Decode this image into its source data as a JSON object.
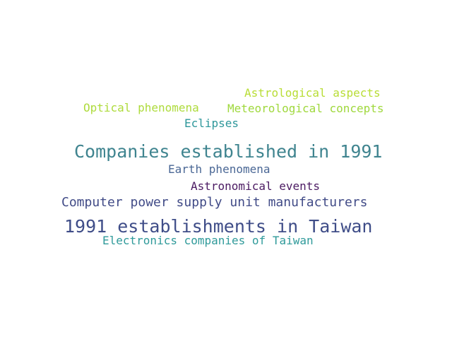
{
  "words": [
    {
      "text": "Companies established in 1991",
      "color": "#3f848f"
    },
    {
      "text": "1991 establishments in Taiwan",
      "color": "#3f4d88"
    },
    {
      "text": "Computer power supply unit manufacturers",
      "color": "#414b87"
    },
    {
      "text": "Electronics companies of Taiwan",
      "color": "#2f9a9a"
    },
    {
      "text": "Astronomical events",
      "color": "#4b1a62"
    },
    {
      "text": "Earth phenomena",
      "color": "#4a6795"
    },
    {
      "text": "Astrological aspects",
      "color": "#b8dd35"
    },
    {
      "text": "Meteorological concepts",
      "color": "#9fd83c"
    },
    {
      "text": "Optical phenomena",
      "color": "#aedb3c"
    },
    {
      "text": "Eclipses",
      "color": "#2e979a"
    }
  ]
}
